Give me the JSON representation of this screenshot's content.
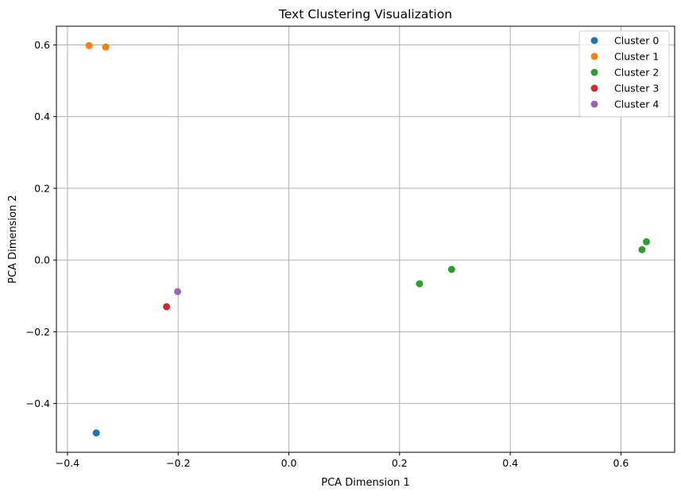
{
  "chart_data": {
    "type": "scatter",
    "title": "Text Clustering Visualization",
    "xlabel": "PCA Dimension 1",
    "ylabel": "PCA Dimension 2",
    "xlim": [
      -0.42,
      0.697
    ],
    "ylim": [
      -0.536,
      0.652
    ],
    "xticks": [
      -0.4,
      -0.2,
      0.0,
      0.2,
      0.4,
      0.6
    ],
    "xtick_labels": [
      "−0.4",
      "−0.2",
      "0.0",
      "0.2",
      "0.4",
      "0.6"
    ],
    "yticks": [
      -0.4,
      -0.2,
      0.0,
      0.2,
      0.4,
      0.6
    ],
    "ytick_labels": [
      "−0.4",
      "−0.2",
      "0.0",
      "0.2",
      "0.4",
      "0.6"
    ],
    "grid": true,
    "legend_position": "top-right",
    "series": [
      {
        "name": "Cluster 0",
        "color": "#1f77b4",
        "points": [
          [
            -0.348,
            -0.482
          ]
        ]
      },
      {
        "name": "Cluster 1",
        "color": "#ff7f0e",
        "points": [
          [
            -0.361,
            0.598
          ],
          [
            -0.331,
            0.594
          ]
        ]
      },
      {
        "name": "Cluster 2",
        "color": "#2ca02c",
        "points": [
          [
            0.236,
            -0.066
          ],
          [
            0.294,
            -0.026
          ],
          [
            0.638,
            0.029
          ],
          [
            0.646,
            0.051
          ]
        ]
      },
      {
        "name": "Cluster 3",
        "color": "#d62728",
        "points": [
          [
            -0.221,
            -0.13
          ]
        ]
      },
      {
        "name": "Cluster 4",
        "color": "#9467bd",
        "points": [
          [
            -0.201,
            -0.088
          ]
        ]
      }
    ]
  }
}
